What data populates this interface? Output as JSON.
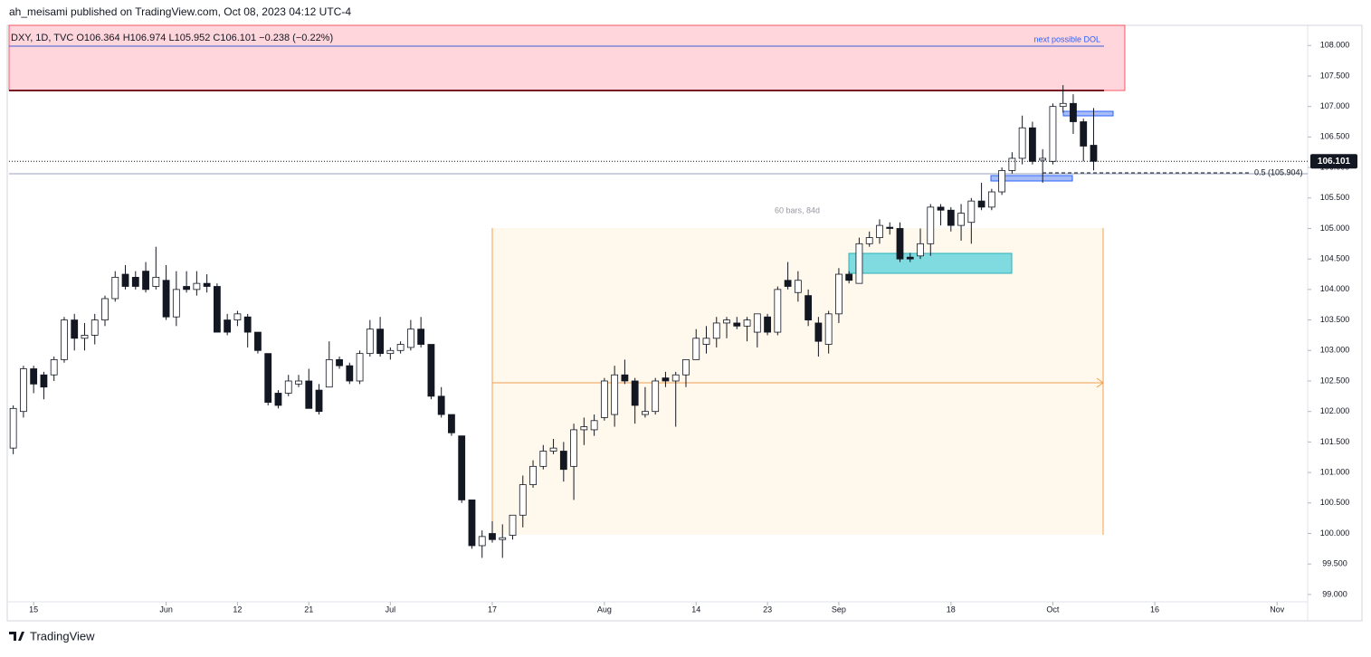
{
  "header": "ah_meisami published on TradingView.com, Oct 08, 2023 04:12 UTC-4",
  "footer": "TradingView",
  "chart_data": {
    "type": "candlestick",
    "legend_text": "DXY, 1D, TVC  O106.364  H106.974  L105.952  C106.101  −0.238 (−0.22%)",
    "annotations": [
      "next possible DOL",
      "60 bars, 84d",
      "0.5 (105.904)"
    ],
    "last_price": 106.101,
    "up_color": "#ffffff",
    "down_color": "#131722",
    "open": [
      101.4,
      102.0,
      102.7,
      102.6,
      102.6,
      102.85,
      103.5,
      103.2,
      103.25,
      103.5,
      103.85,
      104.25,
      104.2,
      104.3,
      104.05,
      104.15,
      103.55,
      104.05,
      104.0,
      104.1,
      104.05,
      103.5,
      103.5,
      103.55,
      103.3,
      102.95,
      102.3,
      102.3,
      102.45,
      102.5,
      102.35,
      102.4,
      102.85,
      102.75,
      102.5,
      102.95,
      103.35,
      102.95,
      103.0,
      103.05,
      103.35,
      103.1,
      102.25,
      101.95,
      101.6,
      100.55,
      99.8,
      100.0,
      99.9,
      99.97,
      100.3,
      100.8,
      101.1,
      101.35,
      101.35,
      101.1,
      101.7,
      101.7,
      101.9,
      101.95,
      102.6,
      102.5,
      101.95,
      102.0,
      102.55,
      102.5,
      102.6,
      102.85,
      103.1,
      103.2,
      103.45,
      103.45,
      103.4,
      103.3,
      103.55,
      103.3,
      104.15,
      103.95,
      103.9,
      103.45,
      103.1,
      103.6,
      104.25,
      104.1,
      104.75,
      104.85,
      105.02,
      105.0,
      104.53,
      104.55,
      104.75,
      105.35,
      105.3,
      105.05,
      105.1,
      105.45,
      105.35,
      105.6,
      105.95,
      106.15,
      106.65,
      106.12,
      106.1,
      107.0,
      107.05,
      106.75,
      106.364
    ],
    "high": [
      102.1,
      102.75,
      102.75,
      102.65,
      102.9,
      103.55,
      103.6,
      103.45,
      103.6,
      103.9,
      104.3,
      104.4,
      104.3,
      104.45,
      104.7,
      104.4,
      104.3,
      104.3,
      104.3,
      104.25,
      104.1,
      103.6,
      103.65,
      103.6,
      103.3,
      102.95,
      102.35,
      102.6,
      102.6,
      102.7,
      102.45,
      103.15,
      102.9,
      102.8,
      103.0,
      103.5,
      103.55,
      103.05,
      103.15,
      103.5,
      103.55,
      103.1,
      102.4,
      101.95,
      101.6,
      100.55,
      100.05,
      100.2,
      100.15,
      100.3,
      100.95,
      101.2,
      101.45,
      101.55,
      101.5,
      101.8,
      101.9,
      101.95,
      102.55,
      102.75,
      102.85,
      102.55,
      102.4,
      102.55,
      102.65,
      102.65,
      102.85,
      103.35,
      103.4,
      103.55,
      103.55,
      103.55,
      103.55,
      103.6,
      103.6,
      104.05,
      104.45,
      104.3,
      104.0,
      103.55,
      103.65,
      104.35,
      104.3,
      104.85,
      104.95,
      105.15,
      105.1,
      105.1,
      104.6,
      105.0,
      105.4,
      105.4,
      105.35,
      105.4,
      105.5,
      105.75,
      105.65,
      106.0,
      106.25,
      106.85,
      106.75,
      106.3,
      107.05,
      107.35,
      107.2,
      106.8,
      106.974
    ],
    "low": [
      101.3,
      101.9,
      102.3,
      102.2,
      102.5,
      102.8,
      103.0,
      103.0,
      103.1,
      103.4,
      103.8,
      104.0,
      104.0,
      103.95,
      104.0,
      103.5,
      103.4,
      103.95,
      103.9,
      103.95,
      103.3,
      103.25,
      103.4,
      103.05,
      102.95,
      102.1,
      102.05,
      102.25,
      102.4,
      102.05,
      101.95,
      102.4,
      102.7,
      102.45,
      102.45,
      102.9,
      102.9,
      102.85,
      102.95,
      103.0,
      103.05,
      102.2,
      101.9,
      101.6,
      100.5,
      99.75,
      99.6,
      99.85,
      99.6,
      99.9,
      100.1,
      100.75,
      101.05,
      101.3,
      100.85,
      100.55,
      101.45,
      101.6,
      101.85,
      101.75,
      102.45,
      101.8,
      101.9,
      101.95,
      102.4,
      101.75,
      102.4,
      102.85,
      102.95,
      103.05,
      103.2,
      103.35,
      103.15,
      103.05,
      103.25,
      103.25,
      104.0,
      103.8,
      103.4,
      102.9,
      102.95,
      103.45,
      104.1,
      104.1,
      104.7,
      104.75,
      104.9,
      104.45,
      104.45,
      104.5,
      104.55,
      105.05,
      104.95,
      104.8,
      104.75,
      105.3,
      105.3,
      105.55,
      105.9,
      106.05,
      106.05,
      105.75,
      106.05,
      106.9,
      106.55,
      106.1,
      105.952
    ],
    "close": [
      102.05,
      102.7,
      102.45,
      102.4,
      102.85,
      103.5,
      103.2,
      103.25,
      103.5,
      103.85,
      104.2,
      104.05,
      104.05,
      104.0,
      104.2,
      103.55,
      104.0,
      104.0,
      104.1,
      104.05,
      103.3,
      103.3,
      103.6,
      103.3,
      103.0,
      102.15,
      102.1,
      102.5,
      102.5,
      102.05,
      102.0,
      102.85,
      102.75,
      102.5,
      102.95,
      103.35,
      102.95,
      103.0,
      103.1,
      103.35,
      103.1,
      102.25,
      101.95,
      101.65,
      100.55,
      99.8,
      99.95,
      99.9,
      99.93,
      100.3,
      100.8,
      101.1,
      101.35,
      101.4,
      101.05,
      101.7,
      101.75,
      101.85,
      102.5,
      102.6,
      102.5,
      102.1,
      102.0,
      102.5,
      102.5,
      102.6,
      102.85,
      103.2,
      103.2,
      103.45,
      103.5,
      103.4,
      103.5,
      103.6,
      103.3,
      104.0,
      104.05,
      104.15,
      103.5,
      103.15,
      103.6,
      104.25,
      104.15,
      104.75,
      104.85,
      105.05,
      105.0,
      104.5,
      104.5,
      104.75,
      105.35,
      105.3,
      105.05,
      105.25,
      105.45,
      105.35,
      105.6,
      105.95,
      106.15,
      106.65,
      106.1,
      106.15,
      107.0,
      107.05,
      106.75,
      106.35,
      106.101
    ],
    "xlim": [
      -1.3,
      127
    ],
    "xticks": [
      {
        "value": 2,
        "label": "15"
      },
      {
        "value": 15,
        "label": "Jun"
      },
      {
        "value": 22,
        "label": "12"
      },
      {
        "value": 29,
        "label": "21"
      },
      {
        "value": 37,
        "label": "Jul"
      },
      {
        "value": 47,
        "label": "17"
      },
      {
        "value": 58,
        "label": "Aug"
      },
      {
        "value": 67,
        "label": "14"
      },
      {
        "value": 74,
        "label": "23"
      },
      {
        "value": 81,
        "label": "Sep"
      },
      {
        "value": 92,
        "label": "18"
      },
      {
        "value": 102,
        "label": "Oct"
      },
      {
        "value": 112,
        "label": "16"
      },
      {
        "value": 124,
        "label": "Nov"
      }
    ],
    "ylim": [
      98.88,
      108.33
    ],
    "yticks": [
      {
        "value": 99,
        "label": "99.000"
      },
      {
        "value": 99.5,
        "label": "99.500"
      },
      {
        "value": 100,
        "label": "100.000"
      },
      {
        "value": 100.5,
        "label": "100.500"
      },
      {
        "value": 101,
        "label": "101.000"
      },
      {
        "value": 101.5,
        "label": "101.500"
      },
      {
        "value": 102,
        "label": "102.000"
      },
      {
        "value": 102.5,
        "label": "102.500"
      },
      {
        "value": 103,
        "label": "103.000"
      },
      {
        "value": 103.5,
        "label": "103.500"
      },
      {
        "value": 104,
        "label": "104.000"
      },
      {
        "value": 104.5,
        "label": "104.500"
      },
      {
        "value": 105,
        "label": "105.000"
      },
      {
        "value": 105.5,
        "label": "105.500"
      },
      {
        "value": 106,
        "label": "106.000"
      },
      {
        "value": 106.5,
        "label": "106.500"
      },
      {
        "value": 107,
        "label": "107.000"
      },
      {
        "value": 107.5,
        "label": "107.500"
      },
      {
        "value": 108,
        "label": "108.000"
      }
    ]
  }
}
